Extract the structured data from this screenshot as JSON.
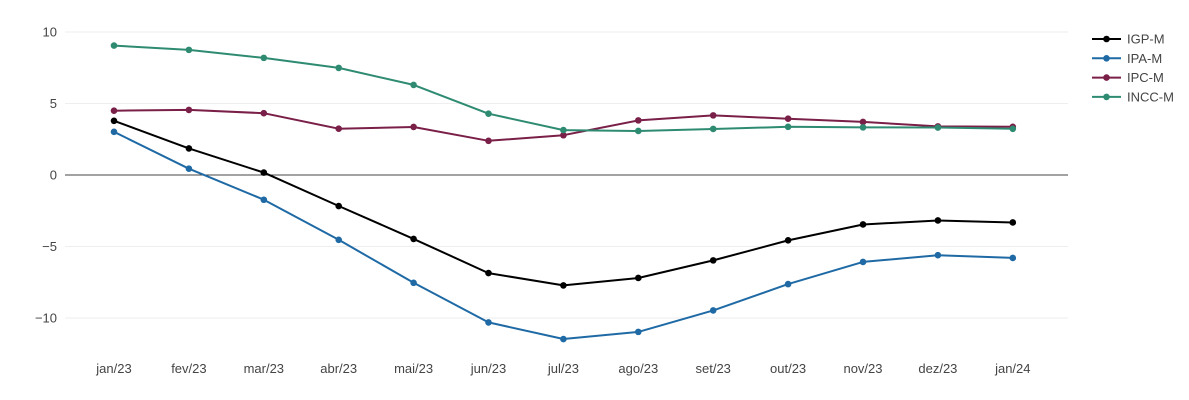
{
  "chart_data": {
    "type": "line",
    "categories": [
      "jan/23",
      "fev/23",
      "mar/23",
      "abr/23",
      "mai/23",
      "jun/23",
      "jul/23",
      "ago/23",
      "set/23",
      "out/23",
      "nov/23",
      "dez/23",
      "jan/24"
    ],
    "series": [
      {
        "name": "IGP-M",
        "color": "#000000",
        "values": [
          3.79,
          1.86,
          0.17,
          -2.17,
          -4.47,
          -6.86,
          -7.72,
          -7.2,
          -5.97,
          -4.57,
          -3.46,
          -3.18,
          -3.32
        ]
      },
      {
        "name": "IPA-M",
        "color": "#1f6aa5",
        "values": [
          3.02,
          0.44,
          -1.73,
          -4.53,
          -7.54,
          -10.31,
          -11.47,
          -10.97,
          -9.47,
          -7.63,
          -6.08,
          -5.61,
          -5.8
        ]
      },
      {
        "name": "IPC-M",
        "color": "#7a1f48",
        "values": [
          4.5,
          4.55,
          4.32,
          3.24,
          3.36,
          2.39,
          2.78,
          3.82,
          4.17,
          3.94,
          3.71,
          3.4,
          3.37
        ]
      },
      {
        "name": "INCC-M",
        "color": "#2e8b72",
        "values": [
          9.05,
          8.75,
          8.19,
          7.49,
          6.3,
          4.29,
          3.14,
          3.08,
          3.22,
          3.37,
          3.33,
          3.32,
          3.23
        ]
      }
    ],
    "y_ticks": [
      10,
      5,
      0,
      -5,
      -10
    ],
    "y_tick_labels": [
      "10",
      "5",
      "0",
      "−5",
      "−10"
    ],
    "ylim": [
      -12.6,
      10.1
    ],
    "grid": true,
    "zero_line": true,
    "legend_position": "top-right",
    "title": "",
    "xlabel": "",
    "ylabel": ""
  }
}
